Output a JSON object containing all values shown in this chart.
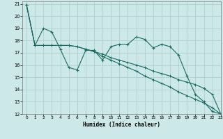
{
  "xlabel": "Humidex (Indice chaleur)",
  "background_color": "#cce8e8",
  "grid_color": "#aacccc",
  "line_color": "#1a6b60",
  "xlim": [
    -0.5,
    23
  ],
  "ylim": [
    12,
    21.2
  ],
  "xticks": [
    0,
    1,
    2,
    3,
    4,
    5,
    6,
    7,
    8,
    9,
    10,
    11,
    12,
    13,
    14,
    15,
    16,
    17,
    18,
    19,
    20,
    21,
    22,
    23
  ],
  "yticks": [
    12,
    13,
    14,
    15,
    16,
    17,
    18,
    19,
    20,
    21
  ],
  "series1_x": [
    0,
    1,
    2,
    3,
    4,
    5,
    6,
    7,
    8,
    9,
    10,
    11,
    12,
    13,
    14,
    15,
    16,
    17,
    18,
    19,
    20,
    21,
    22,
    23
  ],
  "series1_y": [
    20.9,
    17.6,
    19.0,
    18.7,
    17.3,
    15.8,
    15.6,
    17.2,
    17.2,
    16.4,
    17.5,
    17.7,
    17.7,
    18.3,
    18.1,
    17.4,
    17.7,
    17.5,
    16.8,
    15.1,
    13.6,
    13.0,
    12.2,
    12.0
  ],
  "series2_x": [
    0,
    1,
    2,
    3,
    4,
    5,
    6,
    7,
    8,
    9,
    10,
    11,
    12,
    13,
    14,
    15,
    16,
    17,
    18,
    19,
    20,
    21,
    22,
    23
  ],
  "series2_y": [
    20.9,
    17.6,
    17.6,
    17.6,
    17.6,
    17.6,
    17.5,
    17.3,
    17.1,
    16.9,
    16.6,
    16.4,
    16.2,
    16.0,
    15.8,
    15.5,
    15.3,
    15.1,
    14.8,
    14.6,
    14.4,
    14.1,
    13.6,
    12.0
  ],
  "series3_x": [
    0,
    1,
    2,
    3,
    4,
    5,
    6,
    7,
    8,
    9,
    10,
    11,
    12,
    13,
    14,
    15,
    16,
    17,
    18,
    19,
    20,
    21,
    22,
    23
  ],
  "series3_y": [
    20.9,
    17.6,
    17.6,
    17.6,
    17.6,
    17.6,
    17.5,
    17.3,
    17.1,
    16.7,
    16.4,
    16.1,
    15.8,
    15.5,
    15.1,
    14.8,
    14.5,
    14.2,
    13.8,
    13.5,
    13.2,
    12.9,
    12.5,
    12.0
  ]
}
